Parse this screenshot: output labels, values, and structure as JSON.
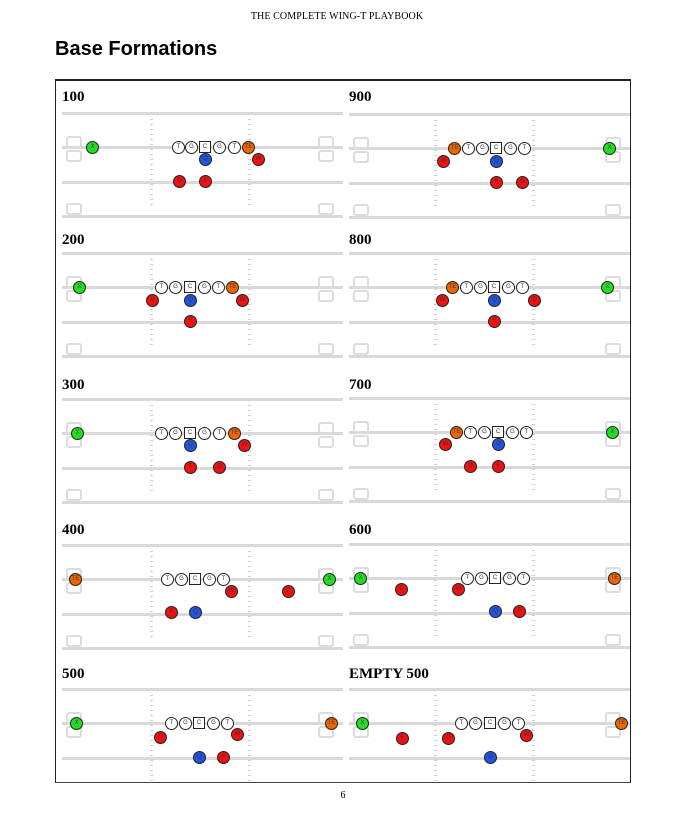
{
  "header": {
    "running_head": "THE COMPLETE WING-T PLAYBOOK",
    "title": "Base Formations"
  },
  "footer": {
    "page_number": "6"
  },
  "colors": {
    "X": "#22dd22",
    "TE": "#ee6600",
    "Q": "#2255dd",
    "back": "#ee1111",
    "line": "#ffffff"
  },
  "formations": [
    {
      "name": "100",
      "col": 0,
      "row": 0,
      "players": [
        [
          "X",
          36,
          66
        ],
        [
          "T",
          122,
          66
        ],
        [
          "G",
          135,
          66
        ],
        [
          "C",
          149,
          66
        ],
        [
          "G",
          163,
          66
        ],
        [
          "T",
          178,
          66
        ],
        [
          "TE",
          192,
          66
        ],
        [
          "Q",
          149,
          78
        ],
        [
          "W",
          202,
          78
        ],
        [
          "D",
          123,
          100
        ],
        [
          "F",
          149,
          100
        ]
      ]
    },
    {
      "name": "900",
      "col": 1,
      "row": 0,
      "players": [
        [
          "TE",
          111,
          67
        ],
        [
          "T",
          125,
          67
        ],
        [
          "G",
          139,
          67
        ],
        [
          "C",
          153,
          67
        ],
        [
          "G",
          167,
          67
        ],
        [
          "T",
          181,
          67
        ],
        [
          "X",
          266,
          67
        ],
        [
          "W",
          100,
          80
        ],
        [
          "Q",
          153,
          80
        ],
        [
          "F",
          153,
          101
        ],
        [
          "D",
          179,
          101
        ]
      ]
    },
    {
      "name": "200",
      "col": 0,
      "row": 1,
      "players": [
        [
          "X",
          23,
          63
        ],
        [
          "T",
          105,
          63
        ],
        [
          "G",
          119,
          63
        ],
        [
          "C",
          134,
          63
        ],
        [
          "G",
          148,
          63
        ],
        [
          "T",
          162,
          63
        ],
        [
          "TE",
          176,
          63
        ],
        [
          "U",
          96,
          76
        ],
        [
          "Q",
          134,
          76
        ],
        [
          "W",
          186,
          76
        ],
        [
          "F",
          134,
          97
        ]
      ]
    },
    {
      "name": "800",
      "col": 1,
      "row": 1,
      "players": [
        [
          "TE",
          109,
          63
        ],
        [
          "T",
          123,
          63
        ],
        [
          "G",
          137,
          63
        ],
        [
          "C",
          151,
          63
        ],
        [
          "G",
          165,
          63
        ],
        [
          "T",
          179,
          63
        ],
        [
          "X",
          264,
          63
        ],
        [
          "W",
          99,
          76
        ],
        [
          "Q",
          151,
          76
        ],
        [
          "D",
          191,
          76
        ],
        [
          "F",
          151,
          97
        ]
      ]
    },
    {
      "name": "300",
      "col": 0,
      "row": 2,
      "players": [
        [
          "X",
          21,
          64
        ],
        [
          "T",
          105,
          64
        ],
        [
          "G",
          119,
          64
        ],
        [
          "C",
          134,
          64
        ],
        [
          "G",
          148,
          64
        ],
        [
          "T",
          163,
          64
        ],
        [
          "TE",
          178,
          64
        ],
        [
          "Q",
          134,
          76
        ],
        [
          "W",
          188,
          76
        ],
        [
          "F",
          134,
          98
        ],
        [
          "D",
          163,
          98
        ]
      ]
    },
    {
      "name": "700",
      "col": 1,
      "row": 2,
      "players": [
        [
          "TE",
          113,
          63
        ],
        [
          "T",
          127,
          63
        ],
        [
          "G",
          141,
          63
        ],
        [
          "C",
          155,
          63
        ],
        [
          "G",
          169,
          63
        ],
        [
          "T",
          183,
          63
        ],
        [
          "X",
          269,
          63
        ],
        [
          "W",
          102,
          75
        ],
        [
          "Q",
          155,
          75
        ],
        [
          "D",
          127,
          97
        ],
        [
          "F",
          155,
          97
        ]
      ]
    },
    {
      "name": "400",
      "col": 0,
      "row": 3,
      "players": [
        [
          "TE",
          19,
          65
        ],
        [
          "T",
          111,
          65
        ],
        [
          "G",
          125,
          65
        ],
        [
          "C",
          139,
          65
        ],
        [
          "G",
          153,
          65
        ],
        [
          "T",
          167,
          65
        ],
        [
          "X",
          273,
          65
        ],
        [
          "W",
          175,
          77
        ],
        [
          "D",
          232,
          77
        ],
        [
          "F",
          115,
          98
        ],
        [
          "Q",
          139,
          98
        ]
      ]
    },
    {
      "name": "600",
      "col": 1,
      "row": 3,
      "players": [
        [
          "X",
          17,
          64
        ],
        [
          "T",
          124,
          64
        ],
        [
          "G",
          138,
          64
        ],
        [
          "C",
          152,
          64
        ],
        [
          "G",
          166,
          64
        ],
        [
          "T",
          180,
          64
        ],
        [
          "TE",
          271,
          64
        ],
        [
          "D",
          58,
          75
        ],
        [
          "W",
          115,
          75
        ],
        [
          "Q",
          152,
          97
        ],
        [
          "F",
          176,
          97
        ]
      ]
    },
    {
      "name": "500",
      "col": 0,
      "row": 4,
      "players": [
        [
          "X",
          20,
          65
        ],
        [
          "T",
          115,
          65
        ],
        [
          "G",
          129,
          65
        ],
        [
          "C",
          143,
          65
        ],
        [
          "G",
          157,
          65
        ],
        [
          "T",
          171,
          65
        ],
        [
          "TE",
          275,
          65
        ],
        [
          "D",
          104,
          79
        ],
        [
          "W",
          181,
          76
        ],
        [
          "Q",
          143,
          99
        ],
        [
          "F",
          167,
          99
        ]
      ]
    },
    {
      "name": "EMPTY 500",
      "col": 1,
      "row": 4,
      "players": [
        [
          "X",
          19,
          65
        ],
        [
          "T",
          118,
          65
        ],
        [
          "G",
          132,
          65
        ],
        [
          "C",
          147,
          65
        ],
        [
          "G",
          161,
          65
        ],
        [
          "T",
          175,
          65
        ],
        [
          "TE",
          278,
          65
        ],
        [
          "F",
          59,
          80
        ],
        [
          "D",
          105,
          80
        ],
        [
          "W",
          183,
          77
        ],
        [
          "Q",
          147,
          99
        ]
      ]
    }
  ]
}
